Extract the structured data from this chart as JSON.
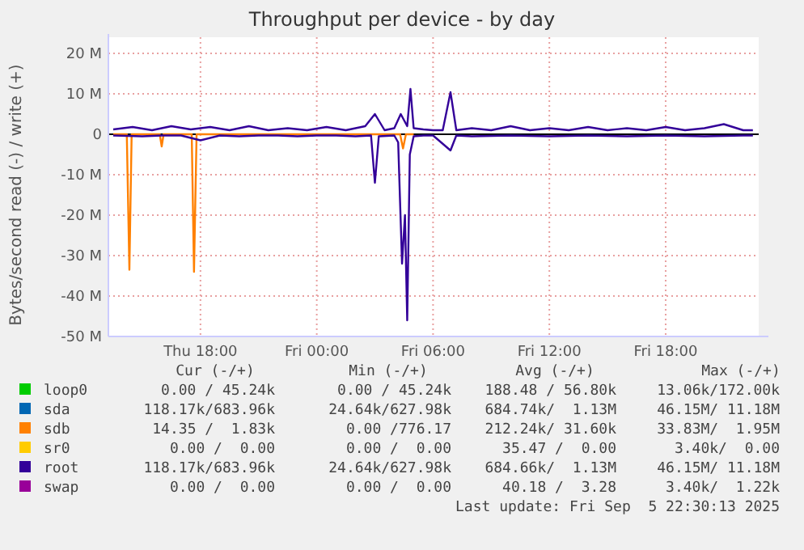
{
  "chart_data": {
    "type": "line",
    "title": "Throughput per device - by day",
    "ylabel": "Bytes/second read (-) / write (+)",
    "xlim": [
      "2025-09-04T13:15",
      "2025-09-05T22:48"
    ],
    "xticks": [
      {
        "value": "2025-09-04T18:00",
        "label": "Thu 18:00"
      },
      {
        "value": "2025-09-05T00:00",
        "label": "Fri 00:00"
      },
      {
        "value": "2025-09-05T06:00",
        "label": "Fri 06:00"
      },
      {
        "value": "2025-09-05T12:00",
        "label": "Fri 12:00"
      },
      {
        "value": "2025-09-05T18:00",
        "label": "Fri 18:00"
      }
    ],
    "ylim": [
      -50,
      20
    ],
    "yticks": [
      {
        "value": 20,
        "label": "20 M"
      },
      {
        "value": 10,
        "label": "10 M"
      },
      0,
      {
        "value": -10,
        "label": "-10 M"
      },
      {
        "value": -20,
        "label": "-20 M"
      },
      {
        "value": -30,
        "label": "-30 M"
      },
      {
        "value": -40,
        "label": "-40 M"
      },
      {
        "value": -50,
        "label": "-50 M"
      }
    ],
    "grid": true,
    "legend": "bottom",
    "series": [
      {
        "name": "loop0",
        "color": "#00cc00"
      },
      {
        "name": "sda",
        "color": "#0066b3"
      },
      {
        "name": "sdb",
        "color": "#ff8000",
        "x": [
          "2025-09-04T13:30",
          "2025-09-04T14:12",
          "2025-09-04T14:20",
          "2025-09-04T14:27",
          "2025-09-04T15:54",
          "2025-09-04T16:00",
          "2025-09-04T16:06",
          "2025-09-04T17:33",
          "2025-09-04T17:40",
          "2025-09-04T17:48",
          "2025-09-05T04:18",
          "2025-09-05T04:27",
          "2025-09-05T04:36",
          "2025-09-05T05:00"
        ],
        "values": [
          0,
          0,
          -33.5,
          0,
          0,
          -3,
          0,
          0,
          -34,
          0,
          0,
          -3.5,
          0,
          0
        ]
      },
      {
        "name": "sr0",
        "color": "#ffcc00"
      },
      {
        "name": "root",
        "color": "#330099",
        "x": [
          "2025-09-04T13:30",
          "2025-09-04T14:30",
          "2025-09-04T15:30",
          "2025-09-04T16:30",
          "2025-09-04T17:30",
          "2025-09-04T18:30",
          "2025-09-04T19:30",
          "2025-09-04T20:30",
          "2025-09-04T21:30",
          "2025-09-04T22:30",
          "2025-09-04T23:30",
          "2025-09-05T00:30",
          "2025-09-05T01:30",
          "2025-09-05T02:30",
          "2025-09-05T03:00",
          "2025-09-05T03:30",
          "2025-09-05T04:00",
          "2025-09-05T04:20",
          "2025-09-05T04:40",
          "2025-09-05T04:50",
          "2025-09-05T05:00",
          "2025-09-05T05:30",
          "2025-09-05T06:00",
          "2025-09-05T06:30",
          "2025-09-05T06:54",
          "2025-09-05T07:12",
          "2025-09-05T08:00",
          "2025-09-05T09:00",
          "2025-09-05T10:00",
          "2025-09-05T11:00",
          "2025-09-05T12:00",
          "2025-09-05T13:00",
          "2025-09-05T14:00",
          "2025-09-05T15:00",
          "2025-09-05T16:00",
          "2025-09-05T17:00",
          "2025-09-05T18:00",
          "2025-09-05T19:00",
          "2025-09-05T20:00",
          "2025-09-05T21:00",
          "2025-09-05T22:00",
          "2025-09-05T22:30"
        ],
        "values": [
          1.2,
          1.8,
          1.0,
          2.0,
          1.2,
          1.8,
          1.0,
          2.0,
          1.0,
          1.5,
          1.0,
          1.8,
          1.0,
          2.0,
          5,
          1.0,
          1.5,
          5,
          2,
          11.2,
          1.5,
          1.2,
          1.0,
          1.0,
          10.4,
          1.0,
          1.5,
          1.0,
          2.0,
          1.0,
          1.5,
          1.0,
          1.8,
          1.0,
          1.5,
          1.0,
          1.8,
          1.0,
          1.5,
          2.5,
          1.0,
          1.0
        ]
      },
      {
        "color": "#330099",
        "x": [
          "2025-09-04T13:30",
          "2025-09-04T15:00",
          "2025-09-04T16:00",
          "2025-09-04T17:00",
          "2025-09-04T18:00",
          "2025-09-04T19:00",
          "2025-09-04T20:00",
          "2025-09-04T21:00",
          "2025-09-04T22:00",
          "2025-09-04T23:00",
          "2025-09-05T00:00",
          "2025-09-05T01:00",
          "2025-09-05T02:00",
          "2025-09-05T02:48",
          "2025-09-05T03:00",
          "2025-09-05T03:12",
          "2025-09-05T04:00",
          "2025-09-05T04:12",
          "2025-09-05T04:24",
          "2025-09-05T04:33",
          "2025-09-05T04:40",
          "2025-09-05T04:48",
          "2025-09-05T05:00",
          "2025-09-05T05:30",
          "2025-09-05T06:00",
          "2025-09-05T06:54",
          "2025-09-05T07:12",
          "2025-09-05T08:00",
          "2025-09-05T10:00",
          "2025-09-05T12:00",
          "2025-09-05T14:00",
          "2025-09-05T16:00",
          "2025-09-05T18:00",
          "2025-09-05T20:00",
          "2025-09-05T22:00",
          "2025-09-05T22:30"
        ],
        "values": [
          -0.3,
          -0.5,
          -0.3,
          -0.3,
          -1.5,
          -0.3,
          -0.5,
          -0.3,
          -0.3,
          -0.5,
          -0.3,
          -0.3,
          -0.5,
          -0.3,
          -12,
          -0.5,
          -0.3,
          -2,
          -32,
          -20,
          -46,
          -5,
          -0.5,
          -0.3,
          -0.3,
          -4,
          -0.3,
          -0.5,
          -0.3,
          -0.5,
          -0.3,
          -0.5,
          -0.3,
          -0.5,
          -0.3,
          -0.3
        ]
      },
      {
        "name": "swap",
        "color": "#990099"
      }
    ],
    "annotations": [
      "Cur (-/+)",
      "Min (-/+)",
      "Avg (-/+)",
      "Max (-/+)",
      "0.00 / 45.24k",
      "0.00 / 45.24k",
      "188.48 / 56.80k",
      "13.06k/172.00k",
      "118.17k/683.96k",
      "24.64k/627.98k",
      "684.74k/  1.13M",
      "46.15M/ 11.18M",
      "14.35 /  1.83k",
      "0.00 /776.17",
      "212.24k/ 31.60k",
      "33.83M/  1.95M",
      "0.00 /  0.00",
      "0.00 /  0.00",
      "35.47 /  0.00",
      "3.40k/  0.00",
      "118.17k/683.96k",
      "24.64k/627.98k",
      "684.66k/  1.13M",
      "46.15M/ 11.18M",
      "0.00 /  0.00",
      "0.00 /  0.00",
      "40.18 /  3.28",
      "3.40k/  1.22k",
      "Last update: Fri Sep  5 22:30:13 2025"
    ]
  }
}
